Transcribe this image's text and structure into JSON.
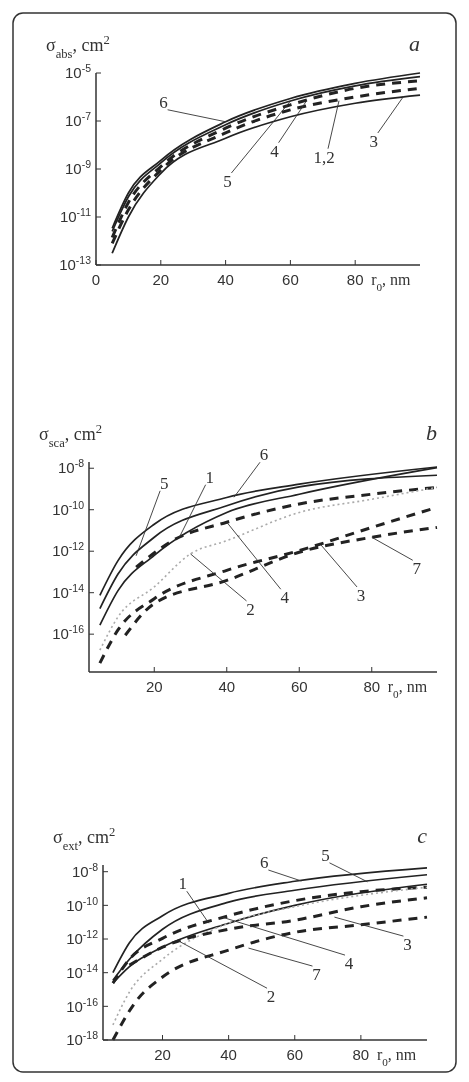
{
  "chart_data": [
    {
      "type": "line",
      "title": "a",
      "ylabel": "σ$_{abs}$, cm$^{2}$",
      "xlabel": "r$_{0}$, nm",
      "log": "y",
      "xlim": [
        0,
        100
      ],
      "xticks": [
        0,
        20,
        40,
        60,
        80
      ],
      "ylim": [
        1e-13,
        1e-05
      ],
      "yticks": [
        {
          "value": 1e-13,
          "label": "10$^{-13}$"
        },
        {
          "value": 1e-11,
          "label": "10$^{-11}$"
        },
        {
          "value": 1e-09,
          "label": "10$^{-9}$"
        },
        {
          "value": 1e-07,
          "label": "10$^{-7}$"
        },
        {
          "value": 1e-05,
          "label": "10$^{-5}$"
        }
      ],
      "series": [
        {
          "color": "#222222",
          "line_style": "solid",
          "x": [
            5,
            10,
            20,
            40,
            60,
            80,
            100
          ],
          "values": [
            3.4e-12,
            1e-10,
            2.3e-09,
            9.3e-08,
            8.7e-07,
            3.7e-06,
            1e-05
          ]
        },
        {
          "color": "#222222",
          "line_style": "solid",
          "x": [
            5,
            10,
            20,
            40,
            60,
            80,
            100
          ],
          "values": [
            2.5e-12,
            7e-11,
            1.8e-09,
            7e-08,
            6.8e-07,
            2.9e-06,
            7e-06
          ]
        },
        {
          "color": "#222222",
          "line_style": "dashed",
          "x": [
            5,
            10,
            20,
            40,
            60,
            80,
            100
          ],
          "values": [
            1.4e-12,
            4e-11,
            1.26e-09,
            5e-08,
            4.7e-07,
            2.3e-06,
            4.7e-06
          ]
        },
        {
          "color": "#222222",
          "line_style": "dashed",
          "x": [
            5,
            10,
            20,
            40,
            60,
            80,
            100
          ],
          "values": [
            8e-13,
            2e-11,
            9e-10,
            3.2e-08,
            2.9e-07,
            1e-06,
            2.3e-06
          ]
        },
        {
          "color": "#222222",
          "line_style": "solid",
          "x": [
            5,
            10,
            20,
            40,
            60,
            80,
            100
          ],
          "values": [
            3.1e-13,
            1e-11,
            6.6e-10,
            1.9e-08,
            1.5e-07,
            5.5e-07,
            1.2e-06
          ]
        }
      ],
      "annotations": [
        {
          "text": "6",
          "x": 40,
          "y": 9.3e-08
        },
        {
          "text": "5",
          "x": 60,
          "y": 6.8e-07
        },
        {
          "text": "4",
          "x": 65,
          "y": 7e-07
        },
        {
          "text": "1,2",
          "x": 75,
          "y": 7e-07
        },
        {
          "text": "3",
          "x": 95,
          "y": 1.1e-06
        }
      ]
    },
    {
      "type": "line",
      "title": "b",
      "ylabel": "σ$_{sca}$, cm$^{2}$",
      "xlabel": "r$_{0}$, nm",
      "log": "y",
      "xlim": [
        2,
        98
      ],
      "xticks": [
        20,
        40,
        60,
        80
      ],
      "ylim": [
        1.5e-18,
        2e-08
      ],
      "yticks": [
        {
          "value": 1e-16,
          "label": "10$^{-16}$"
        },
        {
          "value": 1e-14,
          "label": "10$^{-14}$"
        },
        {
          "value": 1e-12,
          "label": "10$^{-12}$"
        },
        {
          "value": 1e-10,
          "label": "10$^{-10}$"
        },
        {
          "value": 1e-08,
          "label": "10$^{-8}$"
        }
      ],
      "series": [
        {
          "color": "#222222",
          "line_style": "solid",
          "x": [
            5,
            10,
            20,
            40,
            60,
            98
          ],
          "values": [
            7.4e-15,
            3.5e-13,
            2e-11,
            3.9e-10,
            1.7e-09,
            1.15e-08
          ]
        },
        {
          "color": "#222222",
          "line_style": "solid",
          "x": [
            5,
            10,
            20,
            40,
            60,
            98
          ],
          "values": [
            1.7e-15,
            7.9e-14,
            4.7e-12,
            1.55e-10,
            1.26e-09,
            4.6e-09
          ]
        },
        {
          "color": "#222222",
          "line_style": "solid",
          "x": [
            5,
            10,
            20,
            40,
            60,
            98
          ],
          "values": [
            2.7e-16,
            1.26e-14,
            6.3e-13,
            7.4e-11,
            5.6e-10,
            1.07e-08
          ]
        },
        {
          "color": "#222222",
          "line_style": "dashed",
          "x": [
            15,
            25,
            40,
            60,
            80,
            98
          ],
          "values": [
            1.7e-13,
            3.2e-12,
            2.5e-11,
            1.9e-10,
            5.6e-10,
            1.2e-09
          ]
        },
        {
          "color": "#aaaaaa",
          "line_style": "dotted",
          "x": [
            5,
            10,
            20,
            30,
            40,
            60,
            80,
            98
          ],
          "values": [
            1.7e-17,
            6.8e-16,
            1.9e-14,
            7.4e-13,
            3.2e-12,
            7.4e-11,
            3.2e-10,
            1.2e-09
          ]
        },
        {
          "color": "#222222",
          "line_style": "dashed",
          "x": [
            5,
            10,
            20,
            40,
            60,
            80,
            98
          ],
          "values": [
            4e-18,
            1.6e-16,
            5.1e-15,
            1.2e-13,
            1.07e-12,
            1.4e-11,
            1.3e-10
          ]
        },
        {
          "color": "#222222",
          "line_style": "dashed",
          "x": [
            12,
            20,
            40,
            60,
            80,
            98
          ],
          "values": [
            8.9e-17,
            3e-15,
            3.9e-14,
            8.9e-13,
            4.7e-12,
            1.4e-11
          ]
        }
      ],
      "annotations": [
        {
          "text": "5",
          "x": 15,
          "y": 6e-13
        },
        {
          "text": "1",
          "x": 27,
          "y": 5e-12
        },
        {
          "text": "6",
          "x": 42,
          "y": 4e-10
        },
        {
          "text": "4",
          "x": 40,
          "y": 2.5e-11
        },
        {
          "text": "2",
          "x": 30,
          "y": 7.4e-13
        },
        {
          "text": "3",
          "x": 66,
          "y": 2e-12
        },
        {
          "text": "7",
          "x": 80,
          "y": 4.7e-12
        }
      ]
    },
    {
      "type": "line",
      "title": "c",
      "ylabel": "σ$_{ext}$, cm$^{2}$",
      "xlabel": "r$_{0}$, nm",
      "log": "y",
      "xlim": [
        2,
        100
      ],
      "xticks": [
        20,
        40,
        60,
        80
      ],
      "ylim": [
        1e-18,
        2.5e-08
      ],
      "yticks": [
        {
          "value": 1e-18,
          "label": "10$^{-18}$"
        },
        {
          "value": 1e-16,
          "label": "10$^{-16}$"
        },
        {
          "value": 1e-14,
          "label": "10$^{-14}$"
        },
        {
          "value": 1e-12,
          "label": "10$^{-12}$"
        },
        {
          "value": 1e-10,
          "label": "10$^{-10}$"
        },
        {
          "value": 1e-08,
          "label": "10$^{-8}$"
        }
      ],
      "series": [
        {
          "color": "#222222",
          "line_style": "solid",
          "x": [
            5,
            10,
            20,
            40,
            60,
            100
          ],
          "values": [
            1e-14,
            6e-13,
            2.4e-11,
            5.2e-10,
            2.7e-09,
            1.7e-08
          ]
        },
        {
          "color": "#222222",
          "line_style": "solid",
          "x": [
            5,
            10,
            20,
            40,
            60,
            100
          ],
          "values": [
            3.6e-15,
            6.3e-14,
            3.8e-12,
            1.55e-10,
            7.9e-10,
            6.6e-09
          ]
        },
        {
          "color": "#222222",
          "line_style": "solid",
          "x": [
            5,
            10,
            20,
            40,
            60,
            100
          ],
          "values": [
            2.4e-15,
            2.3e-14,
            3.3e-13,
            8.7e-12,
            1e-10,
            1.8e-09
          ]
        },
        {
          "color": "#222222",
          "line_style": "dashed",
          "x": [
            5,
            10,
            20,
            40,
            60,
            80,
            100
          ],
          "values": [
            2.4e-15,
            6.3e-14,
            1.1e-12,
            2.4e-11,
            1.9e-10,
            6.5e-10,
            1.2e-09
          ]
        },
        {
          "color": "#aaaaaa",
          "line_style": "dotted",
          "x": [
            5,
            10,
            20,
            40,
            60,
            100
          ],
          "values": [
            7.9e-18,
            7.1e-16,
            6.3e-14,
            8.7e-12,
            8.3e-11,
            1.2e-09
          ]
        },
        {
          "color": "#222222",
          "line_style": "dashed",
          "x": [
            10,
            20,
            40,
            60,
            80,
            100
          ],
          "values": [
            2.8e-14,
            3.3e-13,
            3.8e-12,
            1.3e-11,
            8.3e-11,
            2.8e-10
          ]
        },
        {
          "color": "#222222",
          "line_style": "dashed",
          "x": [
            5,
            12,
            20,
            40,
            60,
            80,
            100
          ],
          "values": [
            1e-18,
            2e-16,
            5.5e-15,
            2.2e-13,
            2.5e-12,
            7e-12,
            2e-11
          ]
        }
      ],
      "annotations": [
        {
          "text": "6",
          "x": 62,
          "y": 2.8e-09
        },
        {
          "text": "5",
          "x": 82,
          "y": 2.5e-09
        },
        {
          "text": "1",
          "x": 34,
          "y": 8.7e-12
        },
        {
          "text": "4",
          "x": 38,
          "y": 2e-11
        },
        {
          "text": "3",
          "x": 72,
          "y": 2e-11
        },
        {
          "text": "7",
          "x": 46,
          "y": 2.9e-13
        },
        {
          "text": "2",
          "x": 25,
          "y": 7.4e-13
        }
      ]
    }
  ]
}
